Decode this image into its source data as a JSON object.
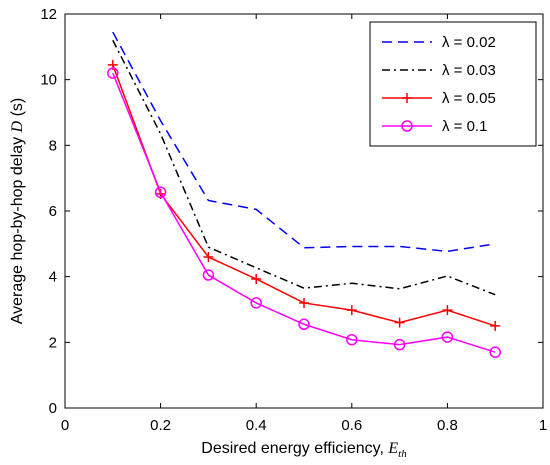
{
  "chart_data": {
    "type": "line",
    "title": "",
    "xlabel": "Desired energy efficiency, ",
    "xlabel_italic": "E",
    "xlabel_sub": "th",
    "ylabel": "Average hop-by-hop delay ",
    "ylabel_italic": "D",
    "ylabel_unit": " (s)",
    "xlim": [
      0,
      1
    ],
    "ylim": [
      0,
      12
    ],
    "xticks": [
      0,
      0.2,
      0.4,
      0.6,
      0.8,
      1
    ],
    "xtick_labels": [
      "0",
      "0.2",
      "0.4",
      "0.6",
      "0.8",
      "1"
    ],
    "yticks": [
      0,
      2,
      4,
      6,
      8,
      10,
      12
    ],
    "ytick_labels": [
      "0",
      "2",
      "4",
      "6",
      "8",
      "10",
      "12"
    ],
    "grid": false,
    "legend_position": "top-right",
    "x": [
      0.1,
      0.2,
      0.3,
      0.4,
      0.5,
      0.6,
      0.7,
      0.8,
      0.9
    ],
    "series": [
      {
        "name": "λ = 0.02",
        "color": "#0000ff",
        "line_style": "dashed",
        "marker": "none",
        "values": [
          11.45,
          8.75,
          6.32,
          6.05,
          4.88,
          4.92,
          4.92,
          4.77,
          5.0
        ]
      },
      {
        "name": "λ = 0.03",
        "color": "#000000",
        "line_style": "dash-dot",
        "marker": "none",
        "values": [
          11.2,
          8.35,
          4.9,
          4.27,
          3.65,
          3.8,
          3.63,
          4.02,
          3.45
        ]
      },
      {
        "name": "λ = 0.05",
        "color": "#ff0000",
        "line_style": "solid",
        "marker": "plus",
        "values": [
          10.45,
          6.52,
          4.6,
          3.93,
          3.2,
          2.98,
          2.6,
          2.98,
          2.5
        ]
      },
      {
        "name": "λ = 0.1",
        "color": "#ff00ff",
        "line_style": "solid",
        "marker": "circle",
        "values": [
          10.2,
          6.57,
          4.05,
          3.2,
          2.55,
          2.08,
          1.93,
          2.16,
          1.7
        ]
      }
    ]
  }
}
